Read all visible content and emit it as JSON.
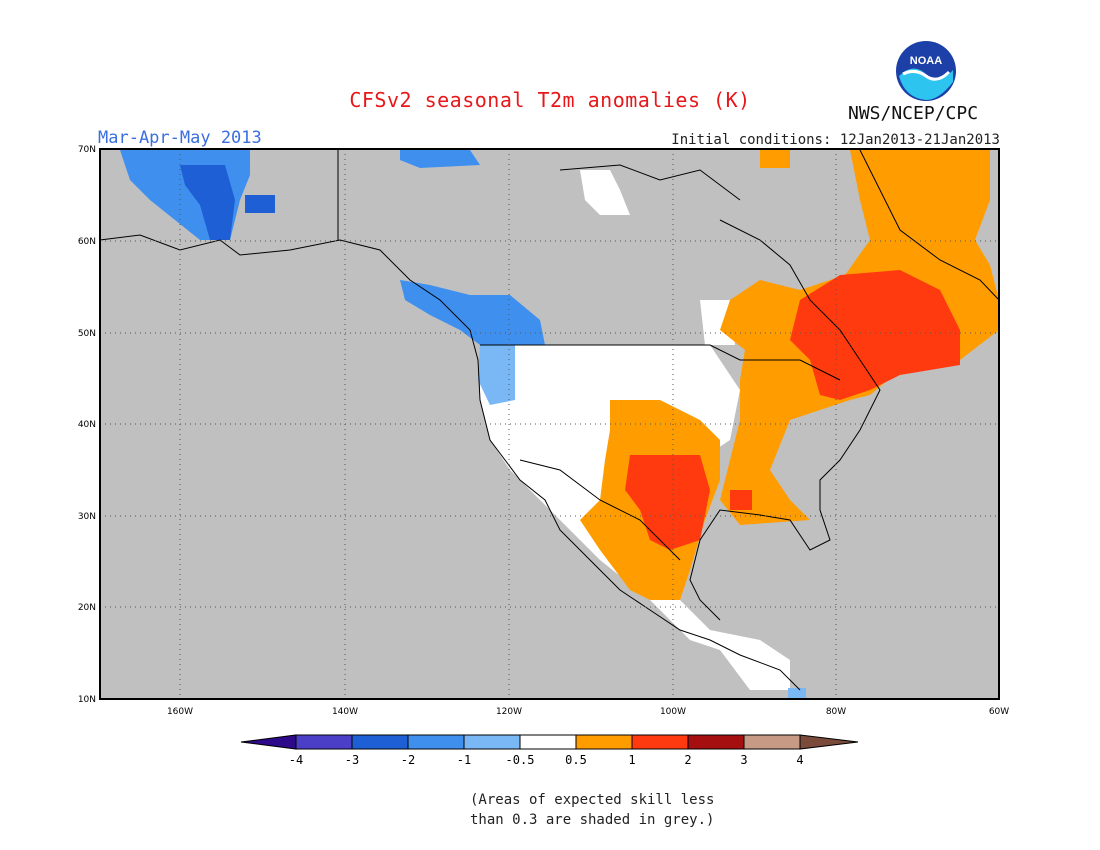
{
  "header": {
    "title": "CFSv2 seasonal T2m anomalies (K)",
    "period": "Mar-Apr-May 2013",
    "initial_conditions": "Initial conditions: 12Jan2013-21Jan2013",
    "agency": "NWS/NCEP/CPC",
    "logo_text": "NOAA"
  },
  "axes": {
    "lat_labels": [
      "70N",
      "60N",
      "50N",
      "40N",
      "30N",
      "20N",
      "10N"
    ],
    "lon_labels": [
      "160W",
      "140W",
      "120W",
      "100W",
      "80W",
      "60W"
    ]
  },
  "legend": {
    "ticks": [
      "-4",
      "-3",
      "-2",
      "-1",
      "-0.5",
      "0.5",
      "1",
      "2",
      "3",
      "4"
    ],
    "colors": [
      "#2e0a8a",
      "#4b3fc7",
      "#1f5fd6",
      "#3f8fef",
      "#7ab8f5",
      "#ffffff",
      "#ff9d00",
      "#ff3a0f",
      "#a50f0f",
      "#c79a85",
      "#7a4a3a"
    ]
  },
  "note": {
    "line1": "(Areas of expected skill less",
    "line2": "than 0.3 are shaded in grey.)"
  },
  "colors": {
    "grey": "#c0c0c0",
    "title_red": "#e8171a",
    "period_blue": "#3a6ee0"
  }
}
